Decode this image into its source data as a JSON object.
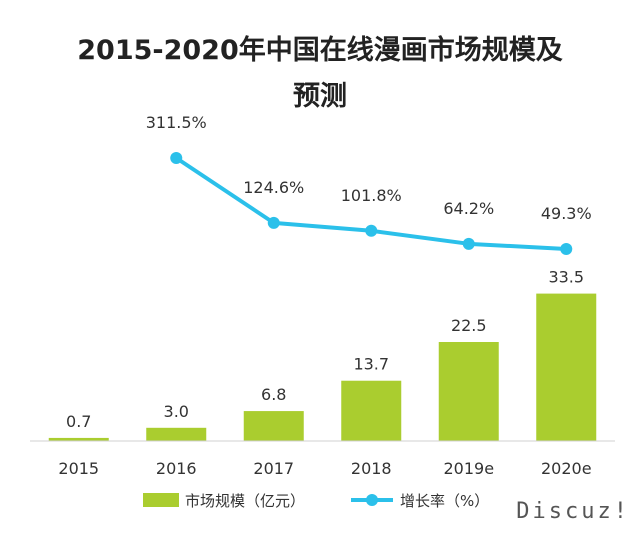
{
  "chart_data": {
    "type": "bar",
    "title_line1": "2015-2020年中国在线漫画市场规模及",
    "title_line2": "预测",
    "categories": [
      "2015",
      "2016",
      "2017",
      "2018",
      "2019e",
      "2020e"
    ],
    "series": [
      {
        "name": "市场规模（亿元）",
        "type": "bar",
        "values": [
          0.7,
          3.0,
          6.8,
          13.7,
          22.5,
          33.5
        ],
        "labels": [
          "0.7",
          "3.0",
          "6.8",
          "13.7",
          "22.5",
          "33.5"
        ],
        "color": "#aacd2f"
      },
      {
        "name": "增长率（%）",
        "type": "line",
        "values": [
          null,
          311.5,
          124.6,
          101.8,
          64.2,
          49.3
        ],
        "labels": [
          "",
          "311.5%",
          "124.6%",
          "101.8%",
          "64.2%",
          "49.3%"
        ],
        "color": "#2bc0ea"
      }
    ],
    "grid": false,
    "legend_position": "bottom"
  },
  "watermark": "Discuz!"
}
